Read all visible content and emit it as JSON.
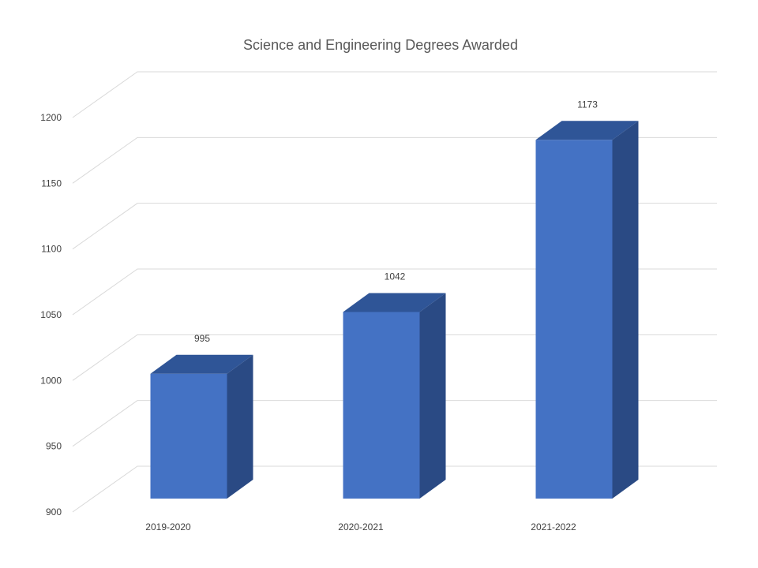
{
  "chart_data": {
    "type": "bar",
    "title": "Science and Engineering  Degrees Awarded",
    "categories": [
      "2019-2020",
      "2020-2021",
      "2021-2022"
    ],
    "values": [
      995,
      1042,
      1173
    ],
    "ylim": [
      900,
      1200
    ],
    "yticks": [
      900,
      950,
      1000,
      1050,
      1100,
      1150,
      1200
    ],
    "grid": true,
    "three_d": true,
    "data_labels": true,
    "colors": {
      "front": "#4472c4",
      "side": "#2a4a84",
      "top": "#2f5597",
      "grid": "#d9d9d9"
    }
  }
}
